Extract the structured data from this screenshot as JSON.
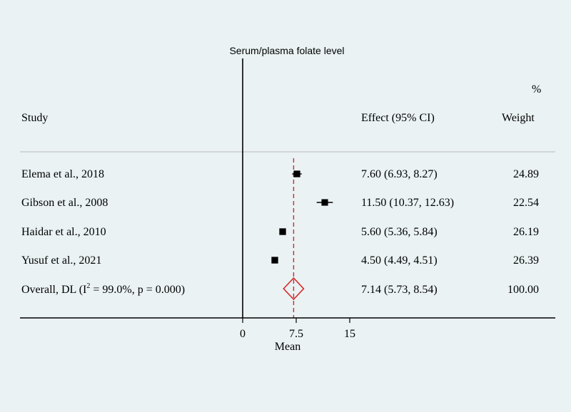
{
  "chart_data": {
    "type": "forest",
    "title": "Serum/plasma folate level",
    "xlabel": "Mean",
    "xlim": [
      0,
      15
    ],
    "xticks": [
      "0",
      "7.5",
      "15"
    ],
    "headers": {
      "study": "Study",
      "effect": "Effect (95% CI)",
      "weight_top": "%",
      "weight": "Weight"
    },
    "studies": [
      {
        "label": "Elema et al., 2018",
        "effect": 7.6,
        "lower": 6.93,
        "upper": 8.27,
        "ci_text": "7.60 (6.93, 8.27)",
        "weight": 24.89,
        "weight_text": "24.89"
      },
      {
        "label": "Gibson et al., 2008",
        "effect": 11.5,
        "lower": 10.37,
        "upper": 12.63,
        "ci_text": "11.50 (10.37, 12.63)",
        "weight": 22.54,
        "weight_text": "22.54"
      },
      {
        "label": "Haidar et al., 2010",
        "effect": 5.6,
        "lower": 5.36,
        "upper": 5.84,
        "ci_text": "5.60 (5.36, 5.84)",
        "weight": 26.19,
        "weight_text": "26.19"
      },
      {
        "label": "Yusuf et al., 2021",
        "effect": 4.5,
        "lower": 4.49,
        "upper": 4.51,
        "ci_text": "4.50 (4.49, 4.51)",
        "weight": 26.39,
        "weight_text": "26.39"
      }
    ],
    "overall": {
      "label_prefix": "Overall, DL (I",
      "label_sup": "2",
      "label_suffix": " = 99.0%, p = 0.000)",
      "effect": 7.14,
      "lower": 5.73,
      "upper": 8.54,
      "ci_text": "7.14 (5.73, 8.54)",
      "weight_text": "100.00"
    },
    "colors": {
      "background": "#eaf2f3",
      "marker": "#000000",
      "overall": "#d62728",
      "separator": "#bbbbbb"
    }
  }
}
